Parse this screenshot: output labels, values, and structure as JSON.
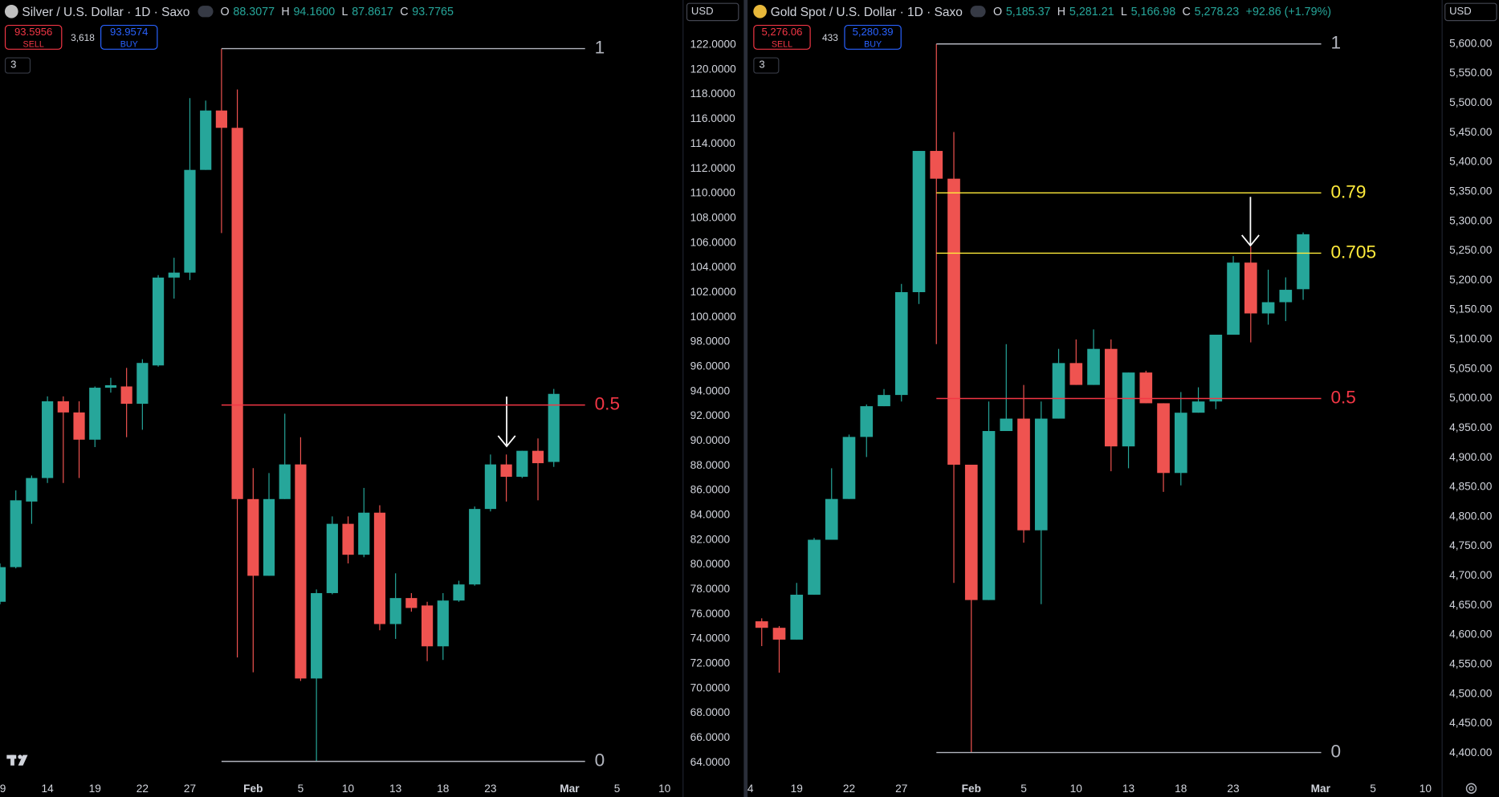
{
  "chart_data": [
    {
      "type": "candlestick",
      "title": "Silver / U.S. Dollar · 1D · Saxo",
      "ohlc": [
        [
          "O",
          "88.3077"
        ],
        [
          "H",
          "94.1600"
        ],
        [
          "L",
          "87.8617"
        ],
        [
          "C",
          "93.7765"
        ]
      ],
      "sell": {
        "price": "93.5956",
        "label": "SELL"
      },
      "spread": "3,618",
      "buy": {
        "price": "93.9574",
        "label": "BUY"
      },
      "indicators": "3",
      "currency": "USD",
      "categories": [
        null,
        null,
        null,
        null,
        null,
        null,
        null,
        null,
        null,
        null,
        null,
        null,
        null,
        null,
        null,
        null,
        null,
        null,
        null,
        null,
        null,
        null,
        null,
        null,
        null,
        null,
        null,
        null,
        null,
        null,
        null,
        null,
        null,
        null,
        null,
        null
      ],
      "open": [
        77.0,
        79.8,
        85.1,
        87.0,
        93.2,
        92.3,
        90.1,
        94.3,
        94.4,
        93.0,
        96.1,
        103.2,
        103.6,
        111.9,
        116.7,
        115.3,
        85.3,
        79.1,
        85.3,
        88.1,
        70.8,
        77.7,
        83.3,
        80.8,
        84.2,
        75.2,
        77.3,
        76.7,
        73.4,
        77.1,
        78.4,
        84.5,
        88.1,
        87.1,
        89.2,
        88.3
      ],
      "high": [
        80.1,
        86.0,
        87.2,
        93.6,
        93.6,
        93.2,
        94.4,
        95.1,
        95.9,
        96.6,
        103.4,
        104.8,
        117.7,
        117.5,
        121.7,
        118.4,
        87.8,
        87.4,
        92.2,
        90.3,
        78.0,
        83.9,
        83.9,
        86.2,
        84.8,
        79.3,
        77.7,
        77.0,
        77.7,
        78.7,
        84.7,
        88.9,
        88.9,
        89.2,
        90.2,
        94.2
      ],
      "low": [
        76.8,
        79.7,
        83.3,
        86.6,
        86.6,
        87.0,
        89.5,
        93.9,
        90.3,
        90.9,
        96.0,
        101.5,
        103.0,
        111.9,
        106.8,
        72.5,
        71.3,
        79.1,
        85.3,
        70.6,
        64.1,
        77.6,
        80.1,
        80.6,
        74.7,
        74.0,
        76.2,
        72.2,
        72.3,
        77.0,
        78.3,
        84.3,
        85.1,
        87.0,
        85.2,
        87.9
      ],
      "close": [
        79.8,
        85.2,
        87.0,
        93.2,
        92.3,
        90.1,
        94.3,
        94.5,
        93.0,
        96.3,
        103.2,
        103.6,
        111.9,
        116.7,
        115.3,
        85.3,
        79.1,
        85.3,
        88.1,
        70.8,
        77.7,
        83.3,
        80.8,
        84.2,
        75.2,
        77.3,
        76.5,
        73.4,
        77.1,
        78.4,
        84.5,
        88.1,
        87.1,
        89.2,
        88.2,
        93.8
      ],
      "up_color": "#26a69a",
      "down_color": "#ef5350",
      "xlim": [
        0,
        43.14
      ],
      "xticks": [
        {
          "value": 0,
          "label": "9"
        },
        {
          "value": 3,
          "label": "14"
        },
        {
          "value": 6,
          "label": "19"
        },
        {
          "value": 9,
          "label": "22"
        },
        {
          "value": 12,
          "label": "27"
        },
        {
          "value": 16,
          "label": "Feb"
        },
        {
          "value": 19,
          "label": "5"
        },
        {
          "value": 22,
          "label": "10"
        },
        {
          "value": 25,
          "label": "13"
        },
        {
          "value": 28,
          "label": "18"
        },
        {
          "value": 31,
          "label": "23"
        },
        {
          "value": 36,
          "label": "Mar"
        },
        {
          "value": 39,
          "label": "5"
        },
        {
          "value": 42,
          "label": "10"
        }
      ],
      "ylim": [
        62.92,
        125.63
      ],
      "yticks": [
        {
          "value": 64,
          "label": "64.0000"
        },
        {
          "value": 66,
          "label": "66.0000"
        },
        {
          "value": 68,
          "label": "68.0000"
        },
        {
          "value": 70,
          "label": "70.0000"
        },
        {
          "value": 72,
          "label": "72.0000"
        },
        {
          "value": 74,
          "label": "74.0000"
        },
        {
          "value": 76,
          "label": "76.0000"
        },
        {
          "value": 78,
          "label": "78.0000"
        },
        {
          "value": 80,
          "label": "80.0000"
        },
        {
          "value": 82,
          "label": "82.0000"
        },
        {
          "value": 84,
          "label": "84.0000"
        },
        {
          "value": 86,
          "label": "86.0000"
        },
        {
          "value": 88,
          "label": "88.0000"
        },
        {
          "value": 90,
          "label": "90.0000"
        },
        {
          "value": 92,
          "label": "92.0000"
        },
        {
          "value": 94,
          "label": "94.0000"
        },
        {
          "value": 96,
          "label": "96.0000"
        },
        {
          "value": 98,
          "label": "98.0000"
        },
        {
          "value": 100,
          "label": "100.0000"
        },
        {
          "value": 102,
          "label": "102.0000"
        },
        {
          "value": 104,
          "label": "104.0000"
        },
        {
          "value": 106,
          "label": "106.0000"
        },
        {
          "value": 108,
          "label": "108.0000"
        },
        {
          "value": 110,
          "label": "110.0000"
        },
        {
          "value": 112,
          "label": "112.0000"
        },
        {
          "value": 114,
          "label": "114.0000"
        },
        {
          "value": 116,
          "label": "116.0000"
        },
        {
          "value": 118,
          "label": "118.0000"
        },
        {
          "value": 120,
          "label": "120.0000"
        },
        {
          "value": 122,
          "label": "122.0000"
        }
      ],
      "fib_levels": [
        {
          "label": "1",
          "value": 121.7,
          "color": "#b2b5be"
        },
        {
          "label": "0.5",
          "value": 92.9,
          "color": "#f23645"
        },
        {
          "label": "0",
          "value": 64.1,
          "color": "#b2b5be"
        }
      ]
    },
    {
      "type": "candlestick",
      "title": "Gold Spot / U.S. Dollar · 1D · Saxo",
      "ohlc": [
        [
          "O",
          "5,185.37"
        ],
        [
          "H",
          "5,281.21"
        ],
        [
          "L",
          "5,166.98"
        ],
        [
          "C",
          "5,278.23"
        ]
      ],
      "change": "+92.86 (+1.79%)",
      "sell": {
        "price": "5,276.06",
        "label": "SELL"
      },
      "spread": "433",
      "buy": {
        "price": "5,280.39",
        "label": "BUY"
      },
      "indicators": "3",
      "currency": "USD",
      "categories": [
        null,
        null,
        null,
        null,
        null,
        null,
        null,
        null,
        null,
        null,
        null,
        null,
        null,
        null,
        null,
        null,
        null,
        null,
        null,
        null,
        null,
        null,
        null,
        null,
        null,
        null,
        null,
        null,
        null,
        null,
        null,
        null
      ],
      "open": [
        4623,
        4612,
        4592,
        4668,
        4761,
        4830,
        4935,
        4987,
        5006,
        5180,
        5419,
        5372,
        4888,
        4659,
        4945,
        4966,
        4777,
        4966,
        5060,
        5023,
        5084,
        4919,
        5044,
        4992,
        4874,
        4976,
        4995,
        5108,
        5230,
        5144,
        5163,
        5185
      ],
      "high": [
        4628,
        4615,
        4688,
        4764,
        4882,
        4939,
        4990,
        5016,
        5194,
        5419,
        5600,
        5451,
        4888,
        4995,
        5092,
        5023,
        4995,
        5084,
        5100,
        5117,
        5100,
        5044,
        5047,
        4992,
        5011,
        5019,
        5108,
        5241,
        5257,
        5218,
        5205,
        5281
      ],
      "low": [
        4581,
        4536,
        4592,
        4668,
        4761,
        4830,
        4901,
        4987,
        4995,
        5160,
        5092,
        4688,
        4401,
        4659,
        4945,
        4756,
        4652,
        4966,
        5023,
        5023,
        4877,
        4882,
        4992,
        4842,
        4853,
        4976,
        4982,
        5108,
        5095,
        5125,
        5131,
        5167
      ],
      "close": [
        4612,
        4592,
        4668,
        4761,
        4830,
        4935,
        4987,
        5006,
        5180,
        5419,
        5372,
        4888,
        4659,
        4945,
        4966,
        4777,
        4966,
        5060,
        5023,
        5084,
        4919,
        5044,
        4992,
        4874,
        4976,
        4995,
        5108,
        5230,
        5144,
        5163,
        5184,
        5278
      ],
      "up_color": "#26a69a",
      "down_color": "#ef5350",
      "xlim": [
        -0.81,
        38.93
      ],
      "xticks": [
        {
          "value": -1,
          "label": "4"
        },
        {
          "value": 2,
          "label": "19"
        },
        {
          "value": 5,
          "label": "22"
        },
        {
          "value": 8,
          "label": "27"
        },
        {
          "value": 12,
          "label": "Feb"
        },
        {
          "value": 15,
          "label": "5"
        },
        {
          "value": 18,
          "label": "10"
        },
        {
          "value": 21,
          "label": "13"
        },
        {
          "value": 24,
          "label": "18"
        },
        {
          "value": 27,
          "label": "23"
        },
        {
          "value": 32,
          "label": "Mar"
        },
        {
          "value": 35,
          "label": "5"
        },
        {
          "value": 38,
          "label": "10"
        }
      ],
      "ylim": [
        4361.2,
        5674.4
      ],
      "yticks": [
        {
          "value": 4400,
          "label": "4,400.00"
        },
        {
          "value": 4450,
          "label": "4,450.00"
        },
        {
          "value": 4500,
          "label": "4,500.00"
        },
        {
          "value": 4550,
          "label": "4,550.00"
        },
        {
          "value": 4600,
          "label": "4,600.00"
        },
        {
          "value": 4650,
          "label": "4,650.00"
        },
        {
          "value": 4700,
          "label": "4,700.00"
        },
        {
          "value": 4750,
          "label": "4,750.00"
        },
        {
          "value": 4800,
          "label": "4,800.00"
        },
        {
          "value": 4850,
          "label": "4,850.00"
        },
        {
          "value": 4900,
          "label": "4,900.00"
        },
        {
          "value": 4950,
          "label": "4,950.00"
        },
        {
          "value": 5000,
          "label": "5,000.00"
        },
        {
          "value": 5050,
          "label": "5,050.00"
        },
        {
          "value": 5100,
          "label": "5,100.00"
        },
        {
          "value": 5150,
          "label": "5,150.00"
        },
        {
          "value": 5200,
          "label": "5,200.00"
        },
        {
          "value": 5250,
          "label": "5,250.00"
        },
        {
          "value": 5300,
          "label": "5,300.00"
        },
        {
          "value": 5350,
          "label": "5,350.00"
        },
        {
          "value": 5400,
          "label": "5,400.00"
        },
        {
          "value": 5450,
          "label": "5,450.00"
        },
        {
          "value": 5500,
          "label": "5,500.00"
        },
        {
          "value": 5550,
          "label": "5,550.00"
        },
        {
          "value": 5600,
          "label": "5,600.00"
        }
      ],
      "fib_levels": [
        {
          "label": "1",
          "value": 5600,
          "color": "#b2b5be"
        },
        {
          "label": "0.79",
          "value": 5348,
          "color": "#ffeb3b"
        },
        {
          "label": "0.705",
          "value": 5246,
          "color": "#ffeb3b"
        },
        {
          "label": "0.5",
          "value": 5000,
          "color": "#f23645"
        },
        {
          "label": "0",
          "value": 4401,
          "color": "#b2b5be"
        }
      ]
    }
  ]
}
